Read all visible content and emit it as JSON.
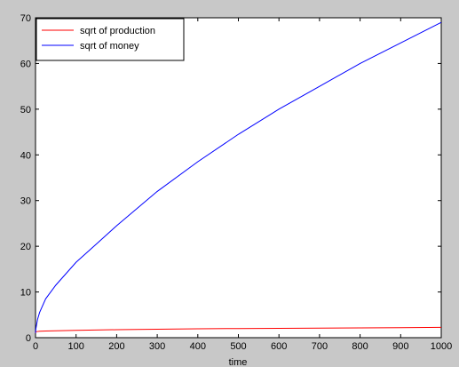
{
  "chart_data": {
    "type": "line",
    "title": "",
    "xlabel": "time",
    "ylabel": "",
    "xlim": [
      0,
      1000
    ],
    "ylim": [
      0,
      70
    ],
    "xticks": [
      0,
      100,
      200,
      300,
      400,
      500,
      600,
      700,
      800,
      900,
      1000
    ],
    "yticks": [
      0,
      10,
      20,
      30,
      40,
      50,
      60,
      70
    ],
    "grid": false,
    "legend_position": "top-left",
    "series": [
      {
        "name": "sqrt of production",
        "color": "#ff0000",
        "x": [
          0,
          1,
          5,
          10,
          25,
          50,
          100,
          200,
          300,
          400,
          500,
          600,
          700,
          800,
          900,
          1000
        ],
        "y": [
          1.0,
          1.3,
          1.35,
          1.4,
          1.45,
          1.5,
          1.6,
          1.75,
          1.85,
          1.95,
          2.0,
          2.05,
          2.1,
          2.15,
          2.2,
          2.25
        ]
      },
      {
        "name": "sqrt of money",
        "color": "#0000ff",
        "x": [
          0,
          1,
          5,
          10,
          25,
          50,
          100,
          150,
          200,
          300,
          400,
          500,
          600,
          700,
          800,
          900,
          1000
        ],
        "y": [
          1.0,
          2.0,
          4.0,
          5.5,
          8.5,
          11.5,
          16.5,
          20.5,
          24.5,
          32.0,
          38.5,
          44.5,
          50.0,
          55.0,
          60.0,
          64.5,
          69.0
        ]
      }
    ]
  }
}
